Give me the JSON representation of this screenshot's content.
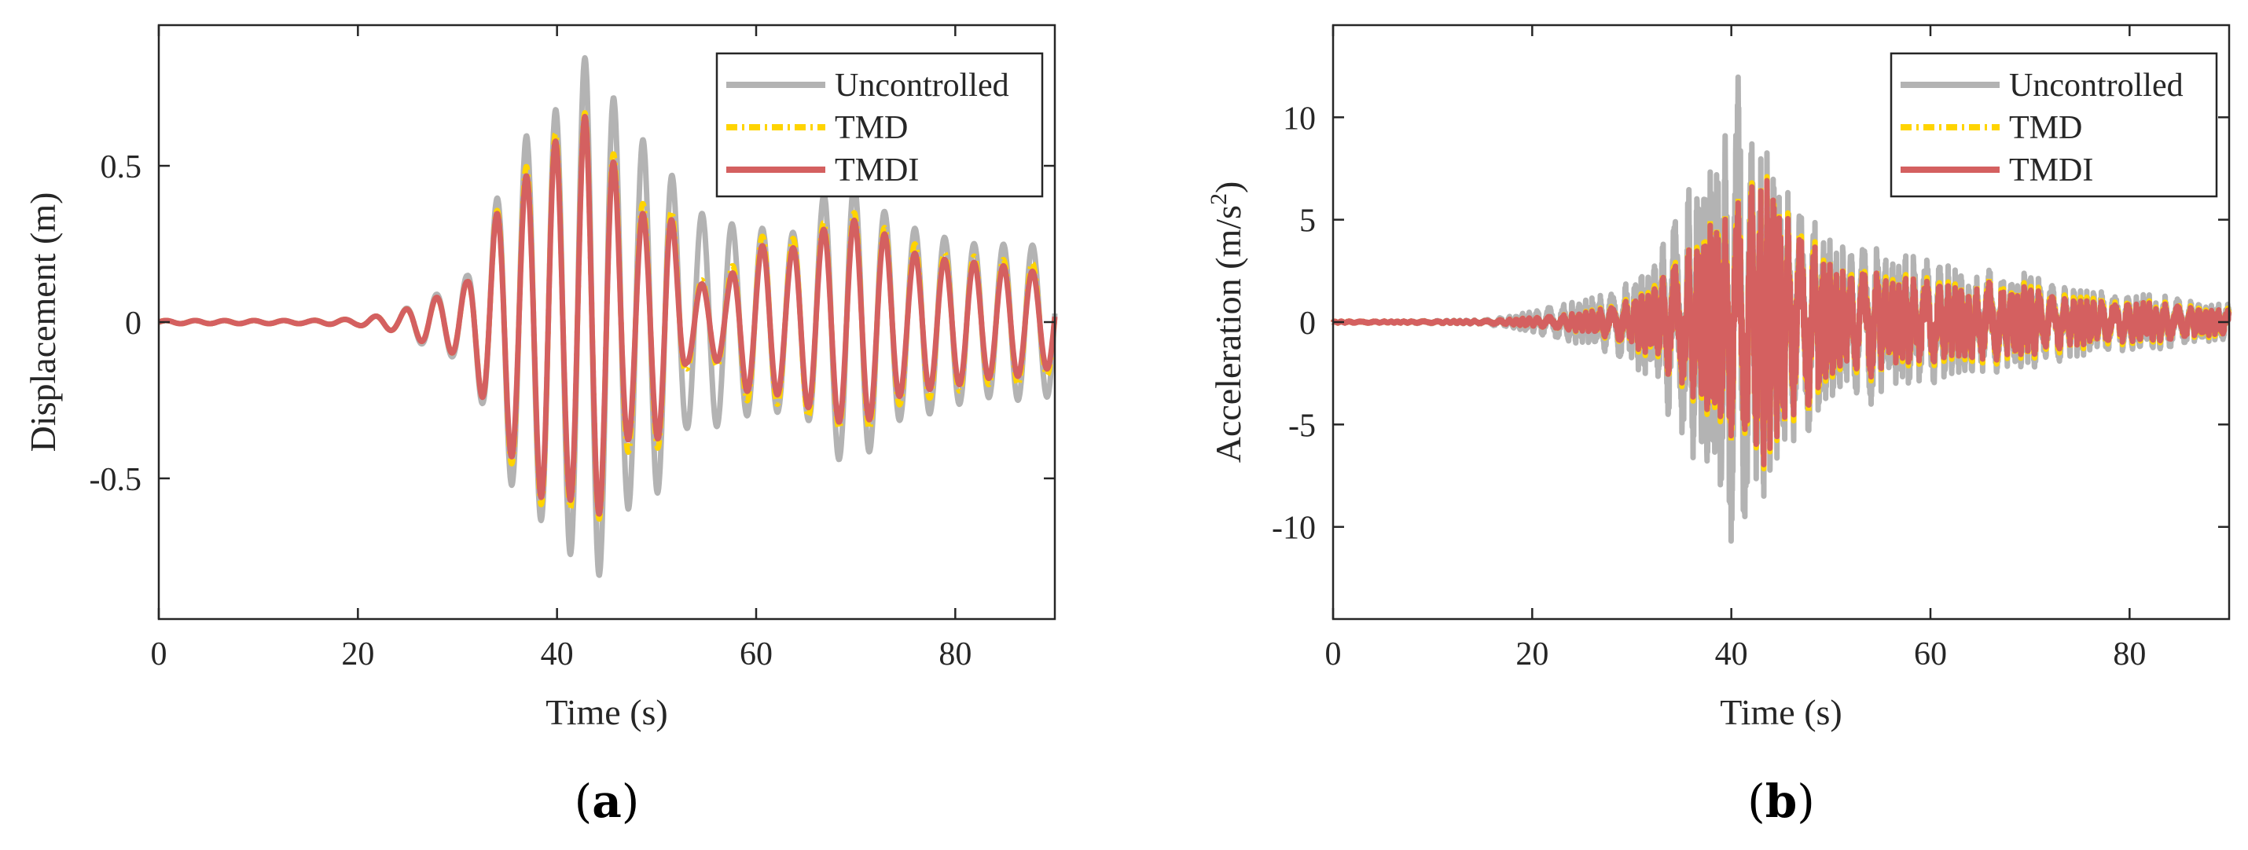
{
  "panel_labels": [
    {
      "open": "(",
      "letter": "a",
      "close": ")"
    },
    {
      "open": "(",
      "letter": "b",
      "close": ")"
    }
  ],
  "colors": {
    "uncontrolled": "#b3b3b3",
    "tmd": "#ffd400",
    "tmdi": "#d46060",
    "axis": "#262626"
  },
  "chart_data": [
    {
      "type": "line",
      "xlabel": "Time (s)",
      "ylabel": "Displacement (m)",
      "xlim": [
        0,
        90
      ],
      "ylim": [
        -0.95,
        0.95
      ],
      "xticks": [
        0,
        20,
        40,
        60,
        80
      ],
      "yticks": [
        -0.5,
        0,
        0.5
      ],
      "ytick_labels": [
        "-0.5",
        "0",
        "0.5"
      ],
      "legend_position": "top-right",
      "legend": [
        "Uncontrolled",
        "TMD",
        "TMDI"
      ],
      "envelope": {
        "Uncontrolled": [
          [
            0,
            0.005
          ],
          [
            5,
            0.005
          ],
          [
            10,
            0.005
          ],
          [
            15,
            0.005
          ],
          [
            20,
            0.01
          ],
          [
            24,
            0.03
          ],
          [
            27,
            0.08
          ],
          [
            29,
            0.1
          ],
          [
            31,
            0.15
          ],
          [
            33,
            0.3
          ],
          [
            35,
            0.5
          ],
          [
            37,
            0.6
          ],
          [
            39,
            0.65
          ],
          [
            41,
            0.72
          ],
          [
            43,
            0.86
          ],
          [
            45,
            0.78
          ],
          [
            47,
            0.6
          ],
          [
            49,
            0.58
          ],
          [
            51,
            0.52
          ],
          [
            53,
            0.34
          ],
          [
            55,
            0.35
          ],
          [
            57,
            0.32
          ],
          [
            59,
            0.3
          ],
          [
            61,
            0.3
          ],
          [
            63,
            0.28
          ],
          [
            65,
            0.3
          ],
          [
            67,
            0.42
          ],
          [
            69,
            0.45
          ],
          [
            71,
            0.43
          ],
          [
            73,
            0.35
          ],
          [
            75,
            0.3
          ],
          [
            77,
            0.3
          ],
          [
            79,
            0.27
          ],
          [
            81,
            0.26
          ],
          [
            83,
            0.24
          ],
          [
            85,
            0.25
          ],
          [
            87,
            0.25
          ],
          [
            89,
            0.24
          ],
          [
            90,
            0.24
          ]
        ],
        "TMD": [
          [
            0,
            0.005
          ],
          [
            5,
            0.005
          ],
          [
            10,
            0.005
          ],
          [
            15,
            0.005
          ],
          [
            20,
            0.01
          ],
          [
            24,
            0.03
          ],
          [
            27,
            0.07
          ],
          [
            29,
            0.09
          ],
          [
            31,
            0.13
          ],
          [
            33,
            0.28
          ],
          [
            35,
            0.44
          ],
          [
            37,
            0.5
          ],
          [
            39,
            0.62
          ],
          [
            41,
            0.58
          ],
          [
            43,
            0.68
          ],
          [
            45,
            0.6
          ],
          [
            47,
            0.42
          ],
          [
            49,
            0.37
          ],
          [
            51,
            0.43
          ],
          [
            53,
            0.15
          ],
          [
            55,
            0.13
          ],
          [
            57,
            0.15
          ],
          [
            59,
            0.25
          ],
          [
            61,
            0.28
          ],
          [
            63,
            0.25
          ],
          [
            65,
            0.3
          ],
          [
            67,
            0.32
          ],
          [
            69,
            0.35
          ],
          [
            71,
            0.35
          ],
          [
            73,
            0.3
          ],
          [
            75,
            0.25
          ],
          [
            77,
            0.25
          ],
          [
            79,
            0.22
          ],
          [
            81,
            0.22
          ],
          [
            83,
            0.2
          ],
          [
            85,
            0.2
          ],
          [
            87,
            0.2
          ],
          [
            89,
            0.17
          ],
          [
            90,
            0.17
          ]
        ],
        "TMDI": [
          [
            0,
            0.005
          ],
          [
            5,
            0.005
          ],
          [
            10,
            0.005
          ],
          [
            15,
            0.005
          ],
          [
            20,
            0.01
          ],
          [
            24,
            0.03
          ],
          [
            27,
            0.07
          ],
          [
            29,
            0.09
          ],
          [
            31,
            0.13
          ],
          [
            33,
            0.28
          ],
          [
            35,
            0.42
          ],
          [
            37,
            0.47
          ],
          [
            39,
            0.6
          ],
          [
            41,
            0.55
          ],
          [
            43,
            0.67
          ],
          [
            45,
            0.58
          ],
          [
            47,
            0.38
          ],
          [
            49,
            0.34
          ],
          [
            51,
            0.4
          ],
          [
            53,
            0.13
          ],
          [
            55,
            0.12
          ],
          [
            57,
            0.13
          ],
          [
            59,
            0.22
          ],
          [
            61,
            0.25
          ],
          [
            63,
            0.22
          ],
          [
            65,
            0.27
          ],
          [
            67,
            0.3
          ],
          [
            69,
            0.33
          ],
          [
            71,
            0.32
          ],
          [
            73,
            0.28
          ],
          [
            75,
            0.22
          ],
          [
            77,
            0.22
          ],
          [
            79,
            0.2
          ],
          [
            81,
            0.2
          ],
          [
            83,
            0.18
          ],
          [
            85,
            0.18
          ],
          [
            87,
            0.17
          ],
          [
            89,
            0.15
          ],
          [
            90,
            0.15
          ]
        ]
      },
      "period_s": 3.0
    },
    {
      "type": "line",
      "xlabel": "Time (s)",
      "ylabel": "Acceleration (m/s",
      "ylabel_sup": "2",
      "ylabel_end": ")",
      "xlim": [
        0,
        90
      ],
      "ylim": [
        -14.5,
        14.5
      ],
      "xticks": [
        0,
        20,
        40,
        60,
        80
      ],
      "yticks": [
        -10,
        -5,
        0,
        5,
        10
      ],
      "ytick_labels": [
        "-10",
        "-5",
        "0",
        "5",
        "10"
      ],
      "legend_position": "top-right",
      "legend": [
        "Uncontrolled",
        "TMD",
        "TMDI"
      ],
      "envelope": {
        "Uncontrolled": [
          [
            0,
            0.05
          ],
          [
            5,
            0.05
          ],
          [
            10,
            0.08
          ],
          [
            15,
            0.1
          ],
          [
            18,
            0.3
          ],
          [
            22,
            0.8
          ],
          [
            26,
            1.2
          ],
          [
            30,
            2.0
          ],
          [
            32,
            3.0
          ],
          [
            34,
            5.0
          ],
          [
            36,
            7.0
          ],
          [
            38,
            8.0
          ],
          [
            40,
            11.0
          ],
          [
            41,
            13.2
          ],
          [
            42,
            9.0
          ],
          [
            44,
            8.5
          ],
          [
            46,
            6.0
          ],
          [
            48,
            5.5
          ],
          [
            50,
            4.0
          ],
          [
            52,
            3.5
          ],
          [
            54,
            4.2
          ],
          [
            56,
            3.0
          ],
          [
            58,
            3.5
          ],
          [
            60,
            3.2
          ],
          [
            62,
            2.8
          ],
          [
            64,
            2.5
          ],
          [
            66,
            2.6
          ],
          [
            68,
            2.2
          ],
          [
            70,
            2.5
          ],
          [
            72,
            2.0
          ],
          [
            74,
            1.8
          ],
          [
            76,
            1.6
          ],
          [
            78,
            1.5
          ],
          [
            80,
            1.4
          ],
          [
            84,
            1.3
          ],
          [
            88,
            1.0
          ],
          [
            90,
            0.9
          ]
        ],
        "TMD": [
          [
            0,
            0.05
          ],
          [
            5,
            0.05
          ],
          [
            10,
            0.06
          ],
          [
            15,
            0.08
          ],
          [
            18,
            0.15
          ],
          [
            22,
            0.3
          ],
          [
            26,
            0.6
          ],
          [
            30,
            1.2
          ],
          [
            32,
            2.0
          ],
          [
            34,
            3.0
          ],
          [
            36,
            4.0
          ],
          [
            38,
            5.5
          ],
          [
            40,
            6.0
          ],
          [
            42,
            7.0
          ],
          [
            44,
            7.5
          ],
          [
            46,
            5.0
          ],
          [
            48,
            4.5
          ],
          [
            50,
            3.0
          ],
          [
            52,
            2.5
          ],
          [
            54,
            3.0
          ],
          [
            56,
            2.2
          ],
          [
            58,
            2.5
          ],
          [
            60,
            2.3
          ],
          [
            62,
            2.0
          ],
          [
            64,
            2.0
          ],
          [
            66,
            2.2
          ],
          [
            68,
            1.8
          ],
          [
            70,
            2.0
          ],
          [
            72,
            1.6
          ],
          [
            74,
            1.4
          ],
          [
            76,
            1.3
          ],
          [
            78,
            1.2
          ],
          [
            80,
            1.1
          ],
          [
            84,
            1.0
          ],
          [
            88,
            0.8
          ],
          [
            90,
            0.7
          ]
        ],
        "TMDI": [
          [
            0,
            0.05
          ],
          [
            5,
            0.05
          ],
          [
            10,
            0.06
          ],
          [
            15,
            0.08
          ],
          [
            18,
            0.15
          ],
          [
            22,
            0.3
          ],
          [
            26,
            0.55
          ],
          [
            30,
            1.1
          ],
          [
            32,
            1.8
          ],
          [
            34,
            2.8
          ],
          [
            36,
            3.8
          ],
          [
            38,
            5.2
          ],
          [
            40,
            5.7
          ],
          [
            42,
            6.8
          ],
          [
            44,
            7.3
          ],
          [
            46,
            4.7
          ],
          [
            48,
            4.2
          ],
          [
            50,
            2.8
          ],
          [
            52,
            2.3
          ],
          [
            54,
            2.8
          ],
          [
            56,
            2.0
          ],
          [
            58,
            2.3
          ],
          [
            60,
            2.1
          ],
          [
            62,
            1.8
          ],
          [
            64,
            1.8
          ],
          [
            66,
            2.0
          ],
          [
            68,
            1.6
          ],
          [
            70,
            1.8
          ],
          [
            72,
            1.4
          ],
          [
            74,
            1.2
          ],
          [
            76,
            1.1
          ],
          [
            78,
            1.0
          ],
          [
            80,
            1.0
          ],
          [
            84,
            0.9
          ],
          [
            88,
            0.7
          ],
          [
            90,
            0.6
          ]
        ]
      },
      "period_s": 0.9
    }
  ]
}
